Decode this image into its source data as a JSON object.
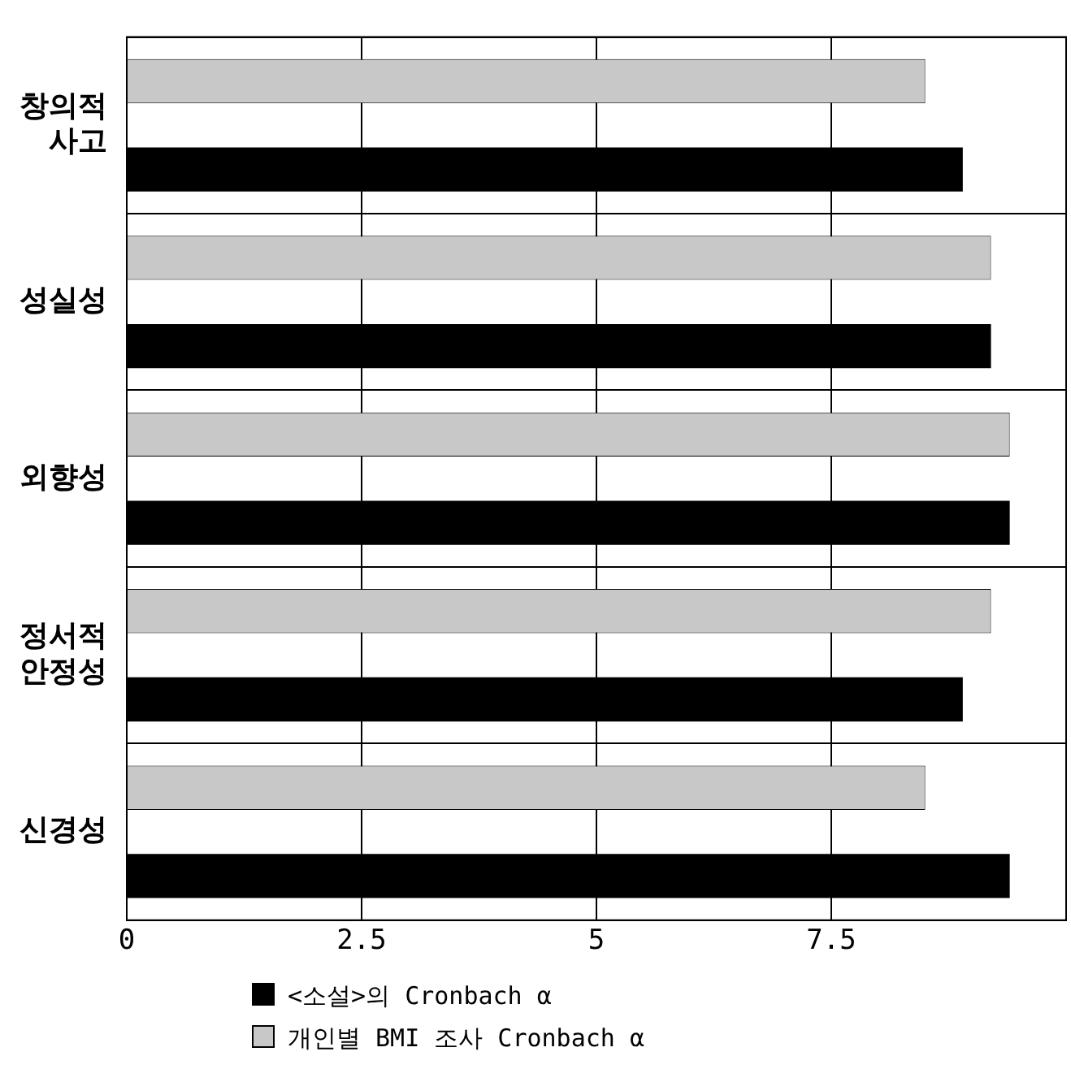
{
  "chart_data": {
    "type": "bar",
    "orientation": "horizontal",
    "categories": [
      "창의적 사고",
      "성실성",
      "외향성",
      "정서적 안정성",
      "신경성"
    ],
    "series": [
      {
        "name": "개인별 BMI 조사 Cronbach α",
        "color": "#c8c8c8",
        "values": [
          8.5,
          9.2,
          9.4,
          9.2,
          8.5
        ]
      },
      {
        "name": "<소설>의 Cronbach α",
        "color": "#000000",
        "values": [
          8.9,
          9.2,
          9.4,
          8.9,
          9.4
        ]
      }
    ],
    "xlim": [
      0,
      10
    ],
    "xticks": [
      0,
      2.5,
      5,
      7.5,
      {
        "value": 10,
        "label": null
      }
    ],
    "grid": true,
    "legend": "bottom"
  }
}
